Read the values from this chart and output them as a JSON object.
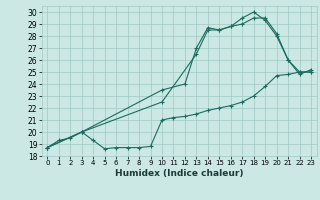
{
  "xlabel": "Humidex (Indice chaleur)",
  "bg_color": "#cce8e4",
  "grid_color": "#a0c8c4",
  "line_color": "#1a6b60",
  "xlim": [
    -0.5,
    23.5
  ],
  "ylim": [
    18,
    30.5
  ],
  "xticks": [
    0,
    1,
    2,
    3,
    4,
    5,
    6,
    7,
    8,
    9,
    10,
    11,
    12,
    13,
    14,
    15,
    16,
    17,
    18,
    19,
    20,
    21,
    22,
    23
  ],
  "yticks": [
    18,
    19,
    20,
    21,
    22,
    23,
    24,
    25,
    26,
    27,
    28,
    29,
    30
  ],
  "line1_x": [
    0,
    1,
    2,
    3,
    4,
    5,
    6,
    7,
    8,
    9,
    10,
    11,
    12,
    13,
    14,
    15,
    16,
    17,
    18,
    19,
    20,
    21,
    22,
    23
  ],
  "line1_y": [
    18.7,
    19.3,
    19.5,
    20.0,
    19.3,
    18.6,
    18.7,
    18.7,
    18.7,
    18.8,
    21.0,
    21.2,
    21.3,
    21.5,
    21.8,
    22.0,
    22.2,
    22.5,
    23.0,
    23.8,
    24.7,
    24.8,
    25.0,
    25.0
  ],
  "line2_x": [
    0,
    3,
    10,
    13,
    14,
    15,
    16,
    17,
    18,
    19,
    20,
    21,
    22,
    23
  ],
  "line2_y": [
    18.7,
    20.0,
    22.5,
    26.5,
    28.5,
    28.5,
    28.8,
    29.0,
    29.5,
    29.5,
    28.2,
    26.0,
    25.0,
    25.0
  ],
  "line3_x": [
    0,
    3,
    10,
    12,
    13,
    14,
    15,
    16,
    17,
    18,
    19,
    20,
    21,
    22,
    23
  ],
  "line3_y": [
    18.7,
    20.0,
    23.5,
    24.0,
    27.0,
    28.7,
    28.5,
    28.8,
    29.5,
    30.0,
    29.3,
    28.0,
    26.0,
    24.8,
    25.2
  ]
}
